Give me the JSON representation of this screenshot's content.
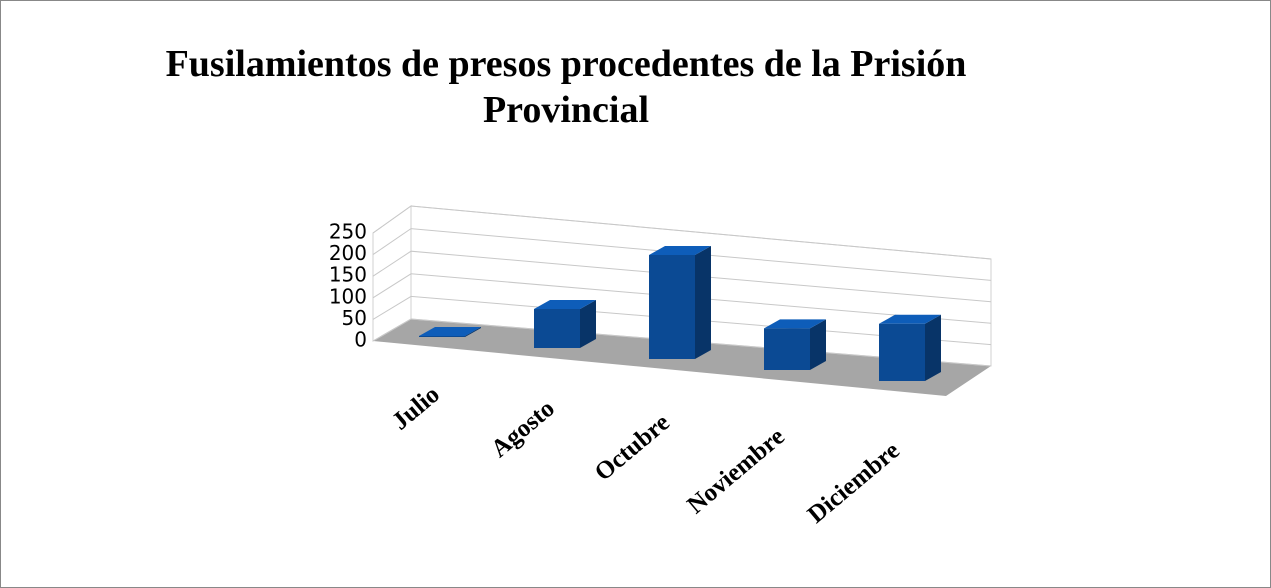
{
  "chart_data": {
    "type": "bar3d",
    "title": "Fusilamientos de presos procedentes de la Prisión Provincial",
    "categories": [
      "Julio",
      "Agosto",
      "Octubre",
      "Noviembre",
      "Diciembre"
    ],
    "values": [
      2,
      75,
      200,
      80,
      110
    ],
    "color": "#0b4a94",
    "ylim": [
      0,
      250
    ],
    "yticks": [
      0,
      50,
      100,
      150,
      200,
      250
    ],
    "grid": true
  }
}
